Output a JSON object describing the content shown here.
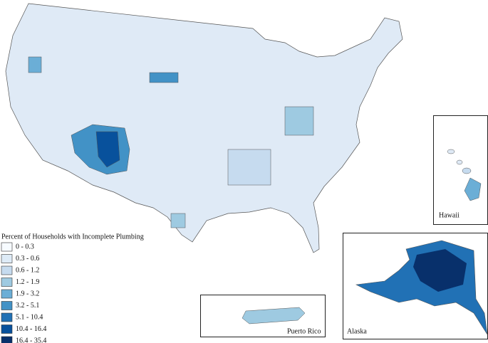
{
  "legend": {
    "title": "Percent of Households with Incomplete Plumbing",
    "items": [
      {
        "label": "0 - 0.3",
        "color": "#f7fbff"
      },
      {
        "label": "0.3 - 0.6",
        "color": "#deebf7"
      },
      {
        "label": "0.6 - 1.2",
        "color": "#c6dbef"
      },
      {
        "label": "1.2 - 1.9",
        "color": "#9ecae1"
      },
      {
        "label": "1.9 - 3.2",
        "color": "#6baed6"
      },
      {
        "label": "3.2 - 5.1",
        "color": "#4292c6"
      },
      {
        "label": "5.1 - 10.4",
        "color": "#2171b5"
      },
      {
        "label": "10.4 - 16.4",
        "color": "#08519c"
      },
      {
        "label": "16.4 - 35.4",
        "color": "#08306b"
      }
    ]
  },
  "insets": {
    "hawaii": "Hawaii",
    "puerto_rico": "Puerto Rico",
    "alaska": "Alaska"
  }
}
